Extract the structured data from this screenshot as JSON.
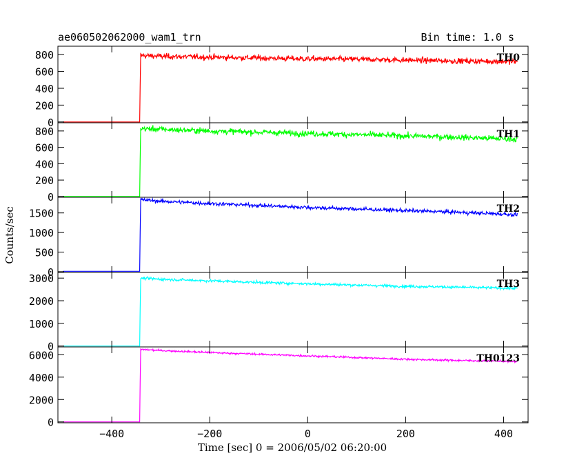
{
  "chart_data": {
    "type": "line",
    "title": "ae060502062000_wam1_trn",
    "subtitle": "Bin time: 1.0 s",
    "xlabel": "Time [sec] 0 = 2006/05/02 06:20:00",
    "ylabel": "Counts/sec",
    "xlim": [
      -510,
      450
    ],
    "xticks": [
      -400,
      -200,
      0,
      200,
      400
    ],
    "xtick_labels": [
      "−400",
      "−200",
      "0",
      "200",
      "400"
    ],
    "grid": false,
    "step_time": -342,
    "x_end": 428,
    "panels": [
      {
        "name": "TH0",
        "color": "#ff0000",
        "ylim": [
          -10,
          900
        ],
        "yticks": [
          0,
          200,
          400,
          600,
          800
        ],
        "pre": 0,
        "start": 790,
        "end": 715,
        "noise": 28,
        "series": {
          "x": [
            -500,
            -343,
            -342,
            -300,
            -200,
            -100,
            0,
            100,
            200,
            300,
            400,
            428
          ],
          "y": [
            0,
            0,
            790,
            780,
            770,
            760,
            750,
            745,
            735,
            725,
            720,
            715
          ]
        }
      },
      {
        "name": "TH1",
        "color": "#00ff00",
        "ylim": [
          -10,
          900
        ],
        "yticks": [
          0,
          200,
          400,
          600,
          800
        ],
        "pre": 0,
        "start": 830,
        "end": 700,
        "noise": 30,
        "series": {
          "x": [
            -500,
            -343,
            -342,
            -300,
            -200,
            -100,
            0,
            100,
            200,
            300,
            400,
            428
          ],
          "y": [
            0,
            0,
            830,
            820,
            800,
            785,
            770,
            755,
            740,
            725,
            705,
            700
          ]
        }
      },
      {
        "name": "TH2",
        "color": "#0000ff",
        "ylim": [
          -20,
          1900
        ],
        "yticks": [
          0,
          500,
          1000,
          1500
        ],
        "pre": 10,
        "start": 1840,
        "end": 1450,
        "noise": 40,
        "series": {
          "x": [
            -500,
            -343,
            -342,
            -300,
            -200,
            -100,
            0,
            100,
            200,
            300,
            400,
            428
          ],
          "y": [
            10,
            10,
            1840,
            1800,
            1740,
            1690,
            1640,
            1600,
            1560,
            1520,
            1470,
            1450
          ]
        }
      },
      {
        "name": "TH3",
        "color": "#00ffff",
        "ylim": [
          -40,
          3250
        ],
        "yticks": [
          0,
          1000,
          2000,
          3000
        ],
        "pre": 0,
        "start": 3000,
        "end": 2550,
        "noise": 50,
        "series": {
          "x": [
            -500,
            -343,
            -342,
            -300,
            -200,
            -100,
            0,
            100,
            200,
            300,
            400,
            428
          ],
          "y": [
            0,
            0,
            3000,
            2950,
            2880,
            2810,
            2750,
            2690,
            2640,
            2600,
            2560,
            2550
          ]
        }
      },
      {
        "name": "TH0123",
        "color": "#ff00ff",
        "ylim": [
          -80,
          6700
        ],
        "yticks": [
          0,
          2000,
          4000,
          6000
        ],
        "pre": 0,
        "start": 6480,
        "end": 5380,
        "noise": 70,
        "series": {
          "x": [
            -500,
            -343,
            -342,
            -300,
            -200,
            -100,
            0,
            100,
            200,
            300,
            400,
            428
          ],
          "y": [
            0,
            0,
            6480,
            6380,
            6200,
            6050,
            5900,
            5750,
            5600,
            5500,
            5420,
            5380
          ]
        }
      }
    ]
  }
}
